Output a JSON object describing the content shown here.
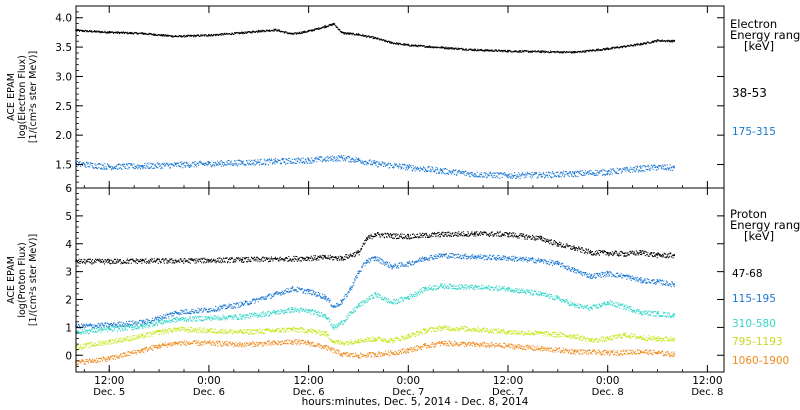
{
  "x_axis": {
    "title": "hours:minutes, Dec.  5, 2014 - Dec.  8, 2014",
    "ticks": [
      {
        "time": "12:00",
        "date": "Dec. 5",
        "hours": 0
      },
      {
        "time": "0:00",
        "date": "Dec. 6",
        "hours": 12
      },
      {
        "time": "12:00",
        "date": "Dec. 6",
        "hours": 24
      },
      {
        "time": "0:00",
        "date": "Dec. 7",
        "hours": 36
      },
      {
        "time": "12:00",
        "date": "Dec. 7",
        "hours": 48
      },
      {
        "time": "0:00",
        "date": "Dec. 8",
        "hours": 60
      },
      {
        "time": "12:00",
        "date": "Dec. 8",
        "hours": 72
      }
    ],
    "range_hours": [
      -4,
      74
    ]
  },
  "chart_data": [
    {
      "type": "scatter",
      "panel": "electron",
      "ylabel_lines": [
        "ACE EPAM",
        "log(Electron Flux)",
        "[1/(cm²s ster MeV)]"
      ],
      "ylim": [
        1.1,
        4.2
      ],
      "yticks": [
        "1.5",
        "2.0",
        "2.5",
        "3.0",
        "3.5",
        "4.0"
      ],
      "ytick_values": [
        1.5,
        2.0,
        2.5,
        3.0,
        3.5,
        4.0
      ],
      "legend_title_lines": [
        "Electron",
        "Energy ranges",
        "[keV]"
      ],
      "series": [
        {
          "name": "38-53",
          "color": "#000000",
          "points": [
            [
              -4,
              3.79
            ],
            [
              0,
              3.76
            ],
            [
              4,
              3.74
            ],
            [
              8,
              3.69
            ],
            [
              12,
              3.71
            ],
            [
              16,
              3.75
            ],
            [
              18,
              3.78
            ],
            [
              20,
              3.8
            ],
            [
              22,
              3.73
            ],
            [
              24,
              3.78
            ],
            [
              26,
              3.86
            ],
            [
              27,
              3.9
            ],
            [
              28,
              3.75
            ],
            [
              30,
              3.72
            ],
            [
              32,
              3.66
            ],
            [
              34,
              3.58
            ],
            [
              36,
              3.54
            ],
            [
              40,
              3.5
            ],
            [
              44,
              3.46
            ],
            [
              48,
              3.44
            ],
            [
              52,
              3.43
            ],
            [
              56,
              3.42
            ],
            [
              60,
              3.48
            ],
            [
              64,
              3.56
            ],
            [
              66,
              3.62
            ],
            [
              68,
              3.61
            ]
          ]
        },
        {
          "name": "175-315",
          "color": "#1a77d2",
          "points": [
            [
              -4,
              1.52
            ],
            [
              0,
              1.47
            ],
            [
              4,
              1.48
            ],
            [
              8,
              1.5
            ],
            [
              12,
              1.52
            ],
            [
              16,
              1.54
            ],
            [
              20,
              1.56
            ],
            [
              24,
              1.58
            ],
            [
              28,
              1.62
            ],
            [
              30,
              1.58
            ],
            [
              32,
              1.52
            ],
            [
              36,
              1.46
            ],
            [
              40,
              1.4
            ],
            [
              44,
              1.34
            ],
            [
              48,
              1.32
            ],
            [
              52,
              1.33
            ],
            [
              56,
              1.35
            ],
            [
              60,
              1.38
            ],
            [
              64,
              1.44
            ],
            [
              66,
              1.46
            ],
            [
              68,
              1.45
            ]
          ]
        }
      ]
    },
    {
      "type": "scatter",
      "panel": "proton",
      "ylabel_lines": [
        "ACE EPAM",
        "log(Proton Flux)",
        "[1/(cm²s ster MeV)]"
      ],
      "ylim": [
        -0.6,
        6.0
      ],
      "yticks": [
        "0",
        "1",
        "2",
        "3",
        "4",
        "5",
        "6"
      ],
      "ytick_values": [
        0,
        1,
        2,
        3,
        4,
        5,
        6
      ],
      "legend_title_lines": [
        "Proton",
        "Energy ranges",
        "[keV]"
      ],
      "series": [
        {
          "name": "47-68",
          "color": "#000000",
          "points": [
            [
              -4,
              3.38
            ],
            [
              0,
              3.38
            ],
            [
              4,
              3.4
            ],
            [
              8,
              3.4
            ],
            [
              12,
              3.42
            ],
            [
              16,
              3.44
            ],
            [
              20,
              3.46
            ],
            [
              24,
              3.5
            ],
            [
              26,
              3.52
            ],
            [
              28,
              3.5
            ],
            [
              30,
              3.7
            ],
            [
              31,
              4.2
            ],
            [
              32,
              4.35
            ],
            [
              34,
              4.3
            ],
            [
              36,
              4.28
            ],
            [
              40,
              4.35
            ],
            [
              44,
              4.38
            ],
            [
              48,
              4.35
            ],
            [
              52,
              4.2
            ],
            [
              54,
              4.0
            ],
            [
              56,
              3.85
            ],
            [
              58,
              3.7
            ],
            [
              60,
              3.68
            ],
            [
              62,
              3.65
            ],
            [
              64,
              3.7
            ],
            [
              66,
              3.6
            ],
            [
              68,
              3.6
            ]
          ]
        },
        {
          "name": "115-195",
          "color": "#1a77d2",
          "points": [
            [
              -4,
              1.05
            ],
            [
              0,
              1.1
            ],
            [
              4,
              1.2
            ],
            [
              6,
              1.35
            ],
            [
              8,
              1.55
            ],
            [
              12,
              1.65
            ],
            [
              16,
              1.85
            ],
            [
              20,
              2.2
            ],
            [
              22,
              2.4
            ],
            [
              24,
              2.3
            ],
            [
              26,
              2.1
            ],
            [
              27,
              1.75
            ],
            [
              28,
              1.95
            ],
            [
              29,
              2.4
            ],
            [
              30,
              3.0
            ],
            [
              31,
              3.4
            ],
            [
              32,
              3.5
            ],
            [
              34,
              3.2
            ],
            [
              36,
              3.3
            ],
            [
              38,
              3.5
            ],
            [
              40,
              3.6
            ],
            [
              44,
              3.55
            ],
            [
              48,
              3.5
            ],
            [
              52,
              3.4
            ],
            [
              54,
              3.3
            ],
            [
              56,
              3.05
            ],
            [
              58,
              2.85
            ],
            [
              60,
              2.95
            ],
            [
              62,
              2.85
            ],
            [
              64,
              2.7
            ],
            [
              66,
              2.65
            ],
            [
              68,
              2.55
            ]
          ]
        },
        {
          "name": "310-580",
          "color": "#33d6c8",
          "points": [
            [
              -4,
              0.85
            ],
            [
              0,
              0.95
            ],
            [
              4,
              1.05
            ],
            [
              6,
              1.2
            ],
            [
              8,
              1.3
            ],
            [
              12,
              1.35
            ],
            [
              16,
              1.4
            ],
            [
              20,
              1.55
            ],
            [
              22,
              1.65
            ],
            [
              24,
              1.6
            ],
            [
              26,
              1.45
            ],
            [
              27,
              1.0
            ],
            [
              28,
              1.2
            ],
            [
              30,
              1.8
            ],
            [
              32,
              2.2
            ],
            [
              34,
              1.9
            ],
            [
              36,
              2.1
            ],
            [
              38,
              2.4
            ],
            [
              40,
              2.5
            ],
            [
              44,
              2.45
            ],
            [
              48,
              2.4
            ],
            [
              52,
              2.2
            ],
            [
              54,
              2.05
            ],
            [
              56,
              1.8
            ],
            [
              58,
              1.7
            ],
            [
              60,
              1.9
            ],
            [
              62,
              1.75
            ],
            [
              64,
              1.55
            ],
            [
              66,
              1.5
            ],
            [
              68,
              1.45
            ]
          ]
        },
        {
          "name": "795-1193",
          "color": "#c6e61a",
          "points": [
            [
              -4,
              0.3
            ],
            [
              0,
              0.5
            ],
            [
              4,
              0.7
            ],
            [
              6,
              0.85
            ],
            [
              8,
              0.95
            ],
            [
              12,
              0.9
            ],
            [
              16,
              0.85
            ],
            [
              20,
              0.9
            ],
            [
              22,
              0.95
            ],
            [
              24,
              0.9
            ],
            [
              26,
              0.8
            ],
            [
              27,
              0.5
            ],
            [
              28,
              0.45
            ],
            [
              30,
              0.55
            ],
            [
              32,
              0.6
            ],
            [
              34,
              0.55
            ],
            [
              36,
              0.7
            ],
            [
              38,
              0.9
            ],
            [
              40,
              1.0
            ],
            [
              44,
              0.95
            ],
            [
              48,
              0.85
            ],
            [
              52,
              0.8
            ],
            [
              56,
              0.7
            ],
            [
              58,
              0.55
            ],
            [
              60,
              0.6
            ],
            [
              62,
              0.75
            ],
            [
              64,
              0.65
            ],
            [
              66,
              0.6
            ],
            [
              68,
              0.6
            ]
          ]
        },
        {
          "name": "1060-1900",
          "color": "#ef8a1c",
          "points": [
            [
              -4,
              -0.25
            ],
            [
              0,
              -0.1
            ],
            [
              4,
              0.2
            ],
            [
              6,
              0.35
            ],
            [
              8,
              0.45
            ],
            [
              12,
              0.45
            ],
            [
              16,
              0.4
            ],
            [
              20,
              0.45
            ],
            [
              22,
              0.5
            ],
            [
              24,
              0.45
            ],
            [
              26,
              0.3
            ],
            [
              28,
              0.05
            ],
            [
              30,
              0.0
            ],
            [
              32,
              0.05
            ],
            [
              34,
              0.1
            ],
            [
              36,
              0.2
            ],
            [
              38,
              0.35
            ],
            [
              40,
              0.45
            ],
            [
              44,
              0.4
            ],
            [
              48,
              0.35
            ],
            [
              52,
              0.25
            ],
            [
              56,
              0.15
            ],
            [
              60,
              0.1
            ],
            [
              64,
              0.15
            ],
            [
              66,
              0.1
            ],
            [
              68,
              0.05
            ]
          ]
        }
      ]
    }
  ]
}
